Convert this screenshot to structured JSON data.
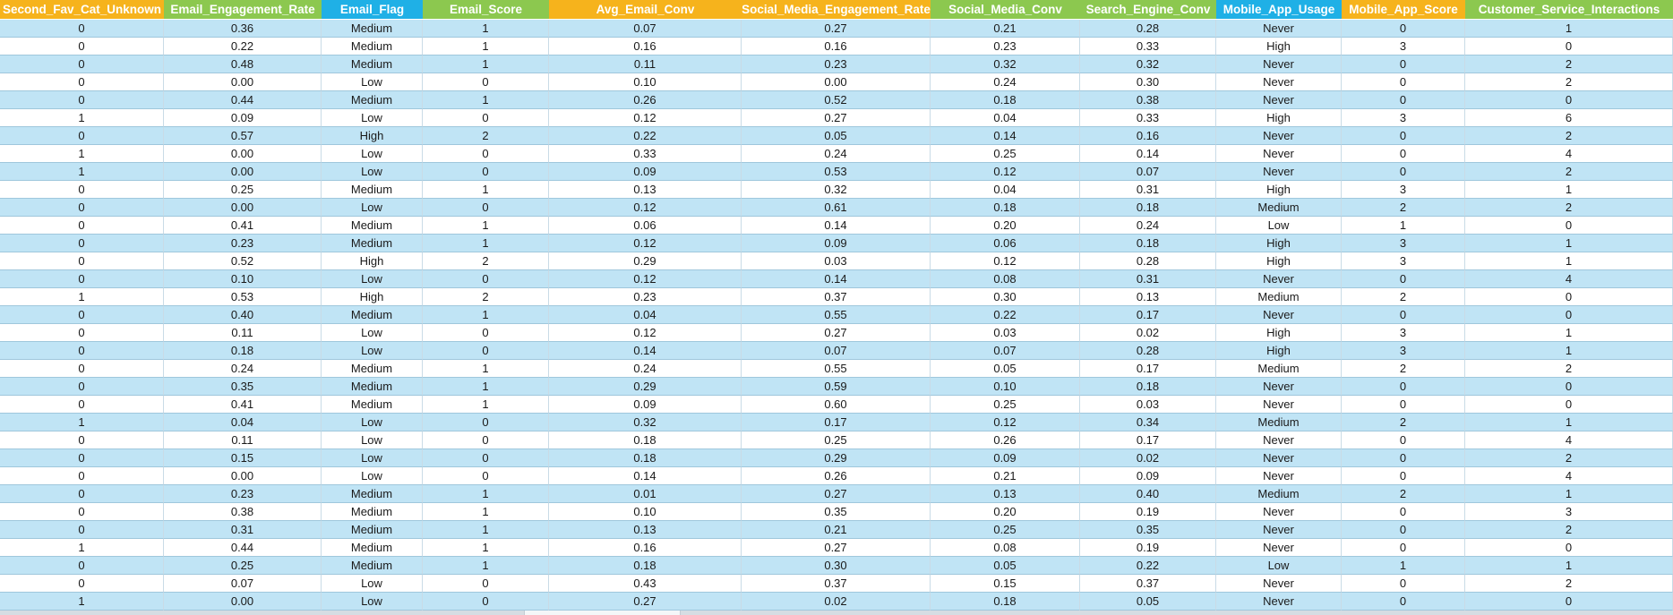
{
  "sheet": {
    "columns": [
      {
        "key": "second_fav_cat_unknown",
        "label": "Second_Fav_Cat_Unknown",
        "color": "#f6b31c"
      },
      {
        "key": "email_engagement_rate",
        "label": "Email_Engagement_Rate",
        "color": "#8cc84f"
      },
      {
        "key": "email_flag",
        "label": "Email_Flag",
        "color": "#1fb0e6"
      },
      {
        "key": "email_score",
        "label": "Email_Score",
        "color": "#8cc84f"
      },
      {
        "key": "avg_email_conv",
        "label": "Avg_Email_Conv",
        "color": "#f6b31c"
      },
      {
        "key": "social_media_engagement_rate",
        "label": "Social_Media_Engagement_Rate",
        "color": "#f6b31c"
      },
      {
        "key": "social_media_conv",
        "label": "Social_Media_Conv",
        "color": "#8cc84f"
      },
      {
        "key": "search_engine_conv",
        "label": "Search_Engine_Conv",
        "color": "#8cc84f"
      },
      {
        "key": "mobile_app_usage",
        "label": "Mobile_App_Usage",
        "color": "#1fb0e6"
      },
      {
        "key": "mobile_app_score",
        "label": "Mobile_App_Score",
        "color": "#f6b31c"
      },
      {
        "key": "customer_service_interactions",
        "label": "Customer_Service_Interactions",
        "color": "#8cc84f"
      }
    ],
    "band_color": "#c0e4f5",
    "rows": [
      [
        "0",
        "0.36",
        "Medium",
        "1",
        "0.07",
        "0.27",
        "0.21",
        "0.28",
        "Never",
        "0",
        "1"
      ],
      [
        "0",
        "0.22",
        "Medium",
        "1",
        "0.16",
        "0.16",
        "0.23",
        "0.33",
        "High",
        "3",
        "0"
      ],
      [
        "0",
        "0.48",
        "Medium",
        "1",
        "0.11",
        "0.23",
        "0.32",
        "0.32",
        "Never",
        "0",
        "2"
      ],
      [
        "0",
        "0.00",
        "Low",
        "0",
        "0.10",
        "0.00",
        "0.24",
        "0.30",
        "Never",
        "0",
        "2"
      ],
      [
        "0",
        "0.44",
        "Medium",
        "1",
        "0.26",
        "0.52",
        "0.18",
        "0.38",
        "Never",
        "0",
        "0"
      ],
      [
        "1",
        "0.09",
        "Low",
        "0",
        "0.12",
        "0.27",
        "0.04",
        "0.33",
        "High",
        "3",
        "6"
      ],
      [
        "0",
        "0.57",
        "High",
        "2",
        "0.22",
        "0.05",
        "0.14",
        "0.16",
        "Never",
        "0",
        "2"
      ],
      [
        "1",
        "0.00",
        "Low",
        "0",
        "0.33",
        "0.24",
        "0.25",
        "0.14",
        "Never",
        "0",
        "4"
      ],
      [
        "1",
        "0.00",
        "Low",
        "0",
        "0.09",
        "0.53",
        "0.12",
        "0.07",
        "Never",
        "0",
        "2"
      ],
      [
        "0",
        "0.25",
        "Medium",
        "1",
        "0.13",
        "0.32",
        "0.04",
        "0.31",
        "High",
        "3",
        "1"
      ],
      [
        "0",
        "0.00",
        "Low",
        "0",
        "0.12",
        "0.61",
        "0.18",
        "0.18",
        "Medium",
        "2",
        "2"
      ],
      [
        "0",
        "0.41",
        "Medium",
        "1",
        "0.06",
        "0.14",
        "0.20",
        "0.24",
        "Low",
        "1",
        "0"
      ],
      [
        "0",
        "0.23",
        "Medium",
        "1",
        "0.12",
        "0.09",
        "0.06",
        "0.18",
        "High",
        "3",
        "1"
      ],
      [
        "0",
        "0.52",
        "High",
        "2",
        "0.29",
        "0.03",
        "0.12",
        "0.28",
        "High",
        "3",
        "1"
      ],
      [
        "0",
        "0.10",
        "Low",
        "0",
        "0.12",
        "0.14",
        "0.08",
        "0.31",
        "Never",
        "0",
        "4"
      ],
      [
        "1",
        "0.53",
        "High",
        "2",
        "0.23",
        "0.37",
        "0.30",
        "0.13",
        "Medium",
        "2",
        "0"
      ],
      [
        "0",
        "0.40",
        "Medium",
        "1",
        "0.04",
        "0.55",
        "0.22",
        "0.17",
        "Never",
        "0",
        "0"
      ],
      [
        "0",
        "0.11",
        "Low",
        "0",
        "0.12",
        "0.27",
        "0.03",
        "0.02",
        "High",
        "3",
        "1"
      ],
      [
        "0",
        "0.18",
        "Low",
        "0",
        "0.14",
        "0.07",
        "0.07",
        "0.28",
        "High",
        "3",
        "1"
      ],
      [
        "0",
        "0.24",
        "Medium",
        "1",
        "0.24",
        "0.55",
        "0.05",
        "0.17",
        "Medium",
        "2",
        "2"
      ],
      [
        "0",
        "0.35",
        "Medium",
        "1",
        "0.29",
        "0.59",
        "0.10",
        "0.18",
        "Never",
        "0",
        "0"
      ],
      [
        "0",
        "0.41",
        "Medium",
        "1",
        "0.09",
        "0.60",
        "0.25",
        "0.03",
        "Never",
        "0",
        "0"
      ],
      [
        "1",
        "0.04",
        "Low",
        "0",
        "0.32",
        "0.17",
        "0.12",
        "0.34",
        "Medium",
        "2",
        "1"
      ],
      [
        "0",
        "0.11",
        "Low",
        "0",
        "0.18",
        "0.25",
        "0.26",
        "0.17",
        "Never",
        "0",
        "4"
      ],
      [
        "0",
        "0.15",
        "Low",
        "0",
        "0.18",
        "0.29",
        "0.09",
        "0.02",
        "Never",
        "0",
        "2"
      ],
      [
        "0",
        "0.00",
        "Low",
        "0",
        "0.14",
        "0.26",
        "0.21",
        "0.09",
        "Never",
        "0",
        "4"
      ],
      [
        "0",
        "0.23",
        "Medium",
        "1",
        "0.01",
        "0.27",
        "0.13",
        "0.40",
        "Medium",
        "2",
        "1"
      ],
      [
        "0",
        "0.38",
        "Medium",
        "1",
        "0.10",
        "0.35",
        "0.20",
        "0.19",
        "Never",
        "0",
        "3"
      ],
      [
        "0",
        "0.31",
        "Medium",
        "1",
        "0.13",
        "0.21",
        "0.25",
        "0.35",
        "Never",
        "0",
        "2"
      ],
      [
        "1",
        "0.44",
        "Medium",
        "1",
        "0.16",
        "0.27",
        "0.08",
        "0.19",
        "Never",
        "0",
        "0"
      ],
      [
        "0",
        "0.25",
        "Medium",
        "1",
        "0.18",
        "0.30",
        "0.05",
        "0.22",
        "Low",
        "1",
        "1"
      ],
      [
        "0",
        "0.07",
        "Low",
        "0",
        "0.43",
        "0.37",
        "0.15",
        "0.37",
        "Never",
        "0",
        "2"
      ],
      [
        "1",
        "0.00",
        "Low",
        "0",
        "0.27",
        "0.02",
        "0.18",
        "0.05",
        "Never",
        "0",
        "0"
      ]
    ]
  }
}
